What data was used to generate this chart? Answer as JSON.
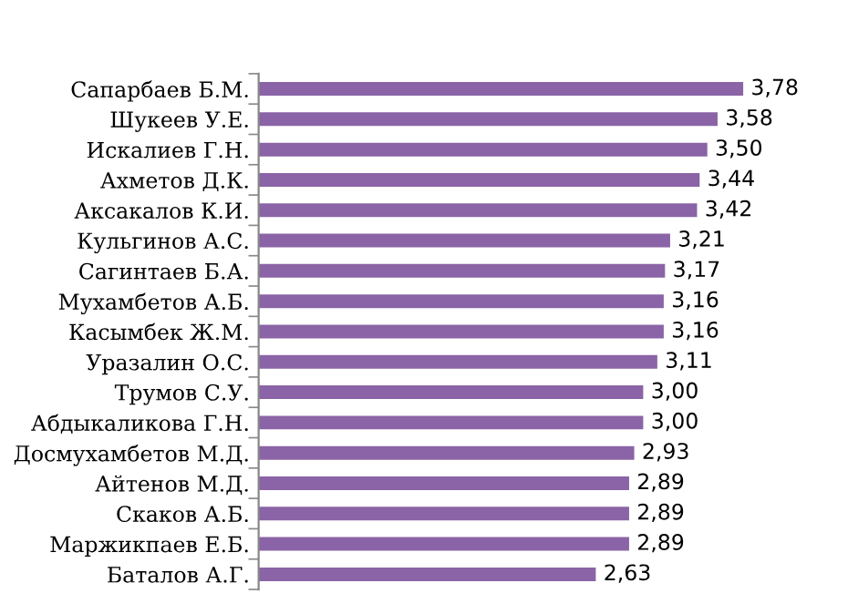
{
  "chart_data": {
    "type": "bar",
    "orientation": "horizontal",
    "categories": [
      "Сапарбаев Б.М.",
      "Шукеев У.Е.",
      "Искалиев Г.Н.",
      "Ахметов Д.К.",
      "Аксакалов К.И.",
      "Кульгинов А.С.",
      "Сагинтаев Б.А.",
      "Мухамбетов А.Б.",
      "Касымбек Ж.М.",
      "Уразалин О.С.",
      "Трумов С.У.",
      "Абдыкаликова Г.Н.",
      "Досмухамбетов М.Д.",
      "Айтенов М.Д.",
      "Скаков А.Б.",
      "Маржикпаев Е.Б.",
      "Баталов А.Г."
    ],
    "values": [
      3.78,
      3.58,
      3.5,
      3.44,
      3.42,
      3.21,
      3.17,
      3.16,
      3.16,
      3.11,
      3.0,
      3.0,
      2.93,
      2.89,
      2.89,
      2.89,
      2.63
    ],
    "value_labels": [
      "3,78",
      "3,58",
      "3,50",
      "3,44",
      "3,42",
      "3,21",
      "3,17",
      "3,16",
      "3,16",
      "3,11",
      "3,00",
      "3,00",
      "2,93",
      "2,89",
      "2,89",
      "2,89",
      "2,63"
    ],
    "color": "#8a64a6",
    "tick_labels": "y",
    "grid": false,
    "legend": false
  }
}
